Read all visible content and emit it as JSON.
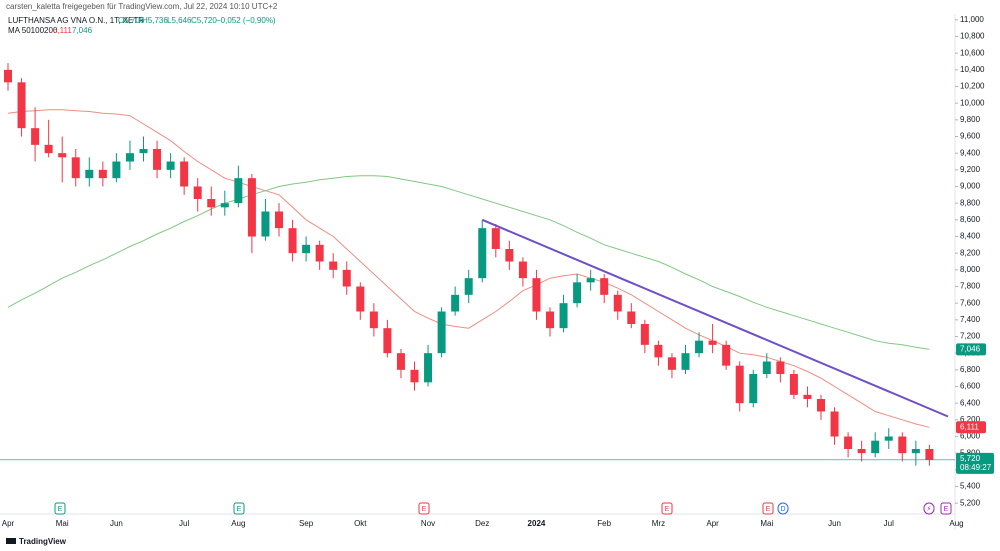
{
  "header": {
    "title": "carsten_kaletta freigegeben für TradingView.com, Jul 22, 2024 10:10 UTC+2",
    "symbol": "LUFTHANSA AG VNA O.N., 1T, XETR",
    "ohlc": [
      "O5,706",
      "H5,736",
      "L5,646",
      "C5,720"
    ],
    "change": "−0,052 (−0,90%)",
    "indicator": "MA 50100200"
  },
  "footer": {
    "logo": "TradingView"
  },
  "chart_data": {
    "type": "candlestick",
    "up_color": "#089981",
    "down_color": "#f23645",
    "grid": false,
    "categories": [
      "Apr",
      null,
      null,
      null,
      "Mai",
      null,
      null,
      null,
      "Jun",
      null,
      null,
      null,
      null,
      "Jul",
      null,
      null,
      null,
      "Aug",
      null,
      null,
      null,
      null,
      "Sep",
      null,
      null,
      null,
      "Okt",
      null,
      null,
      null,
      null,
      "Nov",
      null,
      null,
      null,
      "Dez",
      null,
      null,
      null,
      "2024",
      null,
      null,
      null,
      null,
      "Feb",
      null,
      null,
      null,
      "Mrz",
      null,
      null,
      null,
      "Apr",
      null,
      null,
      null,
      "Mai",
      null,
      null,
      null,
      null,
      "Jun",
      null,
      null,
      null,
      "Jul",
      null,
      null,
      null,
      null,
      "Aug"
    ],
    "open": [
      10.4,
      10.25,
      9.7,
      9.5,
      9.4,
      9.35,
      9.1,
      9.2,
      9.1,
      9.3,
      9.4,
      9.45,
      9.2,
      9.3,
      9.0,
      8.85,
      8.75,
      8.8,
      9.1,
      8.4,
      8.7,
      8.5,
      8.2,
      8.3,
      8.1,
      8.0,
      7.8,
      7.5,
      7.3,
      7.0,
      6.8,
      6.65,
      7.0,
      7.5,
      7.7,
      7.9,
      8.5,
      8.25,
      8.1,
      7.9,
      7.5,
      7.3,
      7.6,
      7.85,
      7.9,
      7.7,
      7.5,
      7.35,
      7.1,
      6.95,
      6.8,
      7.0,
      7.15,
      7.1,
      6.85,
      6.4,
      6.75,
      6.9,
      6.75,
      6.5,
      6.45,
      6.3,
      6.0,
      5.85,
      5.8,
      5.95,
      6.0,
      5.8,
      5.85,
      null,
      null
    ],
    "high": [
      10.48,
      10.3,
      9.95,
      9.8,
      9.6,
      9.45,
      9.35,
      9.3,
      9.4,
      9.55,
      9.6,
      9.55,
      9.4,
      9.35,
      9.1,
      9.0,
      8.95,
      9.25,
      9.15,
      8.85,
      8.8,
      8.6,
      8.4,
      8.35,
      8.2,
      8.1,
      7.85,
      7.6,
      7.4,
      7.05,
      6.9,
      7.1,
      7.55,
      7.8,
      8.0,
      8.6,
      8.55,
      8.35,
      8.15,
      8.0,
      7.55,
      7.7,
      7.95,
      8.0,
      7.95,
      7.75,
      7.6,
      7.4,
      7.15,
      7.0,
      7.1,
      7.25,
      7.35,
      7.15,
      6.9,
      6.8,
      7.0,
      6.95,
      6.8,
      6.6,
      6.5,
      6.35,
      6.05,
      5.95,
      6.05,
      6.1,
      6.05,
      5.95,
      5.9,
      null,
      null
    ],
    "low": [
      10.15,
      9.6,
      9.3,
      9.35,
      9.05,
      9.0,
      9.0,
      9.0,
      9.05,
      9.2,
      9.3,
      9.1,
      9.1,
      8.9,
      8.7,
      8.65,
      8.65,
      8.75,
      8.2,
      8.35,
      8.4,
      8.1,
      8.1,
      8.0,
      7.9,
      7.7,
      7.4,
      7.2,
      6.95,
      6.7,
      6.55,
      6.6,
      6.95,
      7.45,
      7.6,
      7.85,
      8.15,
      8.0,
      7.8,
      7.4,
      7.2,
      7.25,
      7.55,
      7.75,
      7.6,
      7.4,
      7.3,
      7.0,
      6.85,
      6.7,
      6.75,
      6.95,
      7.0,
      6.8,
      6.3,
      6.35,
      6.7,
      6.65,
      6.45,
      6.35,
      6.2,
      5.9,
      5.75,
      5.7,
      5.75,
      5.85,
      5.7,
      5.65,
      5.65,
      null,
      null
    ],
    "close": [
      10.25,
      9.7,
      9.5,
      9.4,
      9.35,
      9.1,
      9.2,
      9.1,
      9.3,
      9.4,
      9.45,
      9.2,
      9.3,
      9.0,
      8.85,
      8.75,
      8.8,
      9.1,
      8.4,
      8.7,
      8.5,
      8.2,
      8.3,
      8.1,
      8.0,
      7.8,
      7.5,
      7.3,
      7.0,
      6.8,
      6.65,
      7.0,
      7.5,
      7.7,
      7.9,
      8.5,
      8.25,
      8.1,
      7.9,
      7.5,
      7.3,
      7.6,
      7.85,
      7.9,
      7.7,
      7.5,
      7.35,
      7.1,
      6.95,
      6.8,
      7.0,
      7.15,
      7.1,
      6.85,
      6.4,
      6.75,
      6.9,
      6.75,
      6.5,
      6.45,
      6.3,
      6.0,
      5.85,
      5.8,
      5.95,
      6.0,
      5.8,
      5.85,
      5.72,
      null,
      null
    ],
    "last_price": {
      "value": 5.72,
      "label": "5,720",
      "countdown": "08:49:27",
      "color": "#089981"
    },
    "series": [
      {
        "color": "#f28b82",
        "last_label": "6,111",
        "label_color": "#f23645",
        "values": [
          9.88,
          9.9,
          9.91,
          9.92,
          9.92,
          9.91,
          9.9,
          9.88,
          9.87,
          9.85,
          9.75,
          9.65,
          9.55,
          9.42,
          9.3,
          9.2,
          9.1,
          9.05,
          9.0,
          8.95,
          8.9,
          8.75,
          8.6,
          8.5,
          8.4,
          8.25,
          8.1,
          7.95,
          7.8,
          7.65,
          7.5,
          7.42,
          7.35,
          7.32,
          7.3,
          7.4,
          7.5,
          7.62,
          7.75,
          7.82,
          7.9,
          7.93,
          7.95,
          7.9,
          7.85,
          7.78,
          7.7,
          7.6,
          7.5,
          7.4,
          7.3,
          7.22,
          7.15,
          7.08,
          7.0,
          6.98,
          6.95,
          6.9,
          6.85,
          6.78,
          6.7,
          6.6,
          6.5,
          6.4,
          6.3,
          6.25,
          6.2,
          6.15,
          6.111,
          null,
          null
        ]
      },
      {
        "color": "#81c784",
        "last_label": "7,046",
        "label_color": "#089981",
        "values": [
          7.55,
          7.64,
          7.72,
          7.81,
          7.9,
          7.97,
          8.05,
          8.12,
          8.2,
          8.28,
          8.35,
          8.43,
          8.5,
          8.58,
          8.65,
          8.73,
          8.8,
          8.85,
          8.9,
          8.95,
          9.0,
          9.03,
          9.05,
          9.08,
          9.1,
          9.12,
          9.13,
          9.13,
          9.12,
          9.09,
          9.06,
          9.03,
          9.0,
          8.95,
          8.9,
          8.85,
          8.8,
          8.75,
          8.7,
          8.65,
          8.6,
          8.53,
          8.45,
          8.38,
          8.3,
          8.25,
          8.2,
          8.15,
          8.1,
          8.03,
          7.95,
          7.88,
          7.8,
          7.74,
          7.68,
          7.61,
          7.55,
          7.5,
          7.45,
          7.4,
          7.35,
          7.3,
          7.25,
          7.2,
          7.15,
          7.12,
          7.1,
          7.07,
          7.046,
          null,
          null
        ]
      }
    ],
    "trendline": {
      "color": "#6f4fc6",
      "start": 8.6,
      "end": 6.24
    },
    "ylim": [
      5.07,
      11.07
    ],
    "yticks": [
      {
        "value": 11,
        "label": "11,000"
      },
      {
        "value": 10.8,
        "label": "10,800"
      },
      {
        "value": 10.6,
        "label": "10,600"
      },
      {
        "value": 10.4,
        "label": "10,400"
      },
      {
        "value": 10.2,
        "label": "10,200"
      },
      {
        "value": 10,
        "label": "10,000"
      },
      {
        "value": 9.8,
        "label": "9,800"
      },
      {
        "value": 9.6,
        "label": "9,600"
      },
      {
        "value": 9.4,
        "label": "9,400"
      },
      {
        "value": 9.2,
        "label": "9,200"
      },
      {
        "value": 9,
        "label": "9,000"
      },
      {
        "value": 8.8,
        "label": "8,800"
      },
      {
        "value": 8.6,
        "label": "8,600"
      },
      {
        "value": 8.4,
        "label": "8,400"
      },
      {
        "value": 8.2,
        "label": "8,200"
      },
      {
        "value": 8,
        "label": "8,000"
      },
      {
        "value": 7.8,
        "label": "7,800"
      },
      {
        "value": 7.6,
        "label": "7,600"
      },
      {
        "value": 7.4,
        "label": "7,400"
      },
      {
        "value": 7.2,
        "label": "7,200"
      },
      {
        "value": 7,
        "label": "7,000"
      },
      {
        "value": 6.8,
        "label": "6,800"
      },
      {
        "value": 6.6,
        "label": "6,600"
      },
      {
        "value": 6.4,
        "label": "6,400"
      },
      {
        "value": 6.2,
        "label": "6,200"
      },
      {
        "value": 6,
        "label": "6,000"
      },
      {
        "value": 5.8,
        "label": "5,800"
      },
      {
        "value": 5.6,
        "label": "5,600"
      },
      {
        "value": 5.4,
        "label": "5,400"
      },
      {
        "value": 5.2,
        "label": "5,200"
      }
    ],
    "events": [
      {
        "label": "E",
        "color": "#089981"
      },
      {
        "label": "E",
        "color": "#089981"
      },
      {
        "label": "E",
        "color": "#f23645"
      },
      {
        "label": "E",
        "color": "#f23645"
      },
      {
        "label": "E",
        "color": "#f23645"
      },
      {
        "label": "D",
        "color": "#2962ff"
      },
      {
        "label": "⚡",
        "color": "#9c27b0"
      },
      {
        "label": "E",
        "color": "#9c27b0"
      }
    ]
  }
}
